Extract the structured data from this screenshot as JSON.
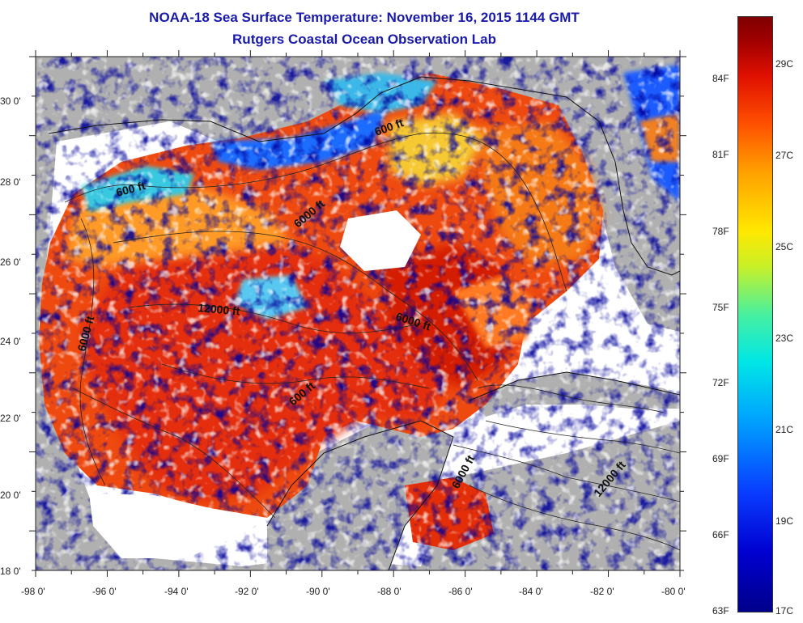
{
  "title": "NOAA-18 Sea Surface Temperature:  November 16, 2015 1144 GMT",
  "subtitle": "Rutgers Coastal Ocean Observation Lab",
  "y_axis_labels": [
    "30 0'",
    "28 0'",
    "26 0'",
    "24 0'",
    "22 0'",
    "20 0'",
    "18 0'"
  ],
  "x_axis_labels": [
    "-98 0'",
    "-96 0'",
    "-94 0'",
    "-92 0'",
    "-90 0'",
    "-88 0'",
    "-86 0'",
    "-84 0'",
    "-82 0'",
    "-80 0'"
  ],
  "contour_labels": [
    "600 ft",
    "600 ft",
    "6000 ft",
    "12000 ft",
    "6000 ft",
    "6000 ft",
    "600 ft",
    "6000 ft",
    "12000 ft"
  ],
  "colorbar": {
    "fahrenheit_labels": [
      "84F",
      "81F",
      "78F",
      "75F",
      "72F",
      "69F",
      "66F",
      "63F"
    ],
    "celsius_labels": [
      "29C",
      "27C",
      "25C",
      "23C",
      "21C",
      "19C",
      "17C"
    ]
  },
  "colors": {
    "title": "#1a1aa8",
    "land": "#b0b0b0",
    "no_data": "#ffffff"
  }
}
